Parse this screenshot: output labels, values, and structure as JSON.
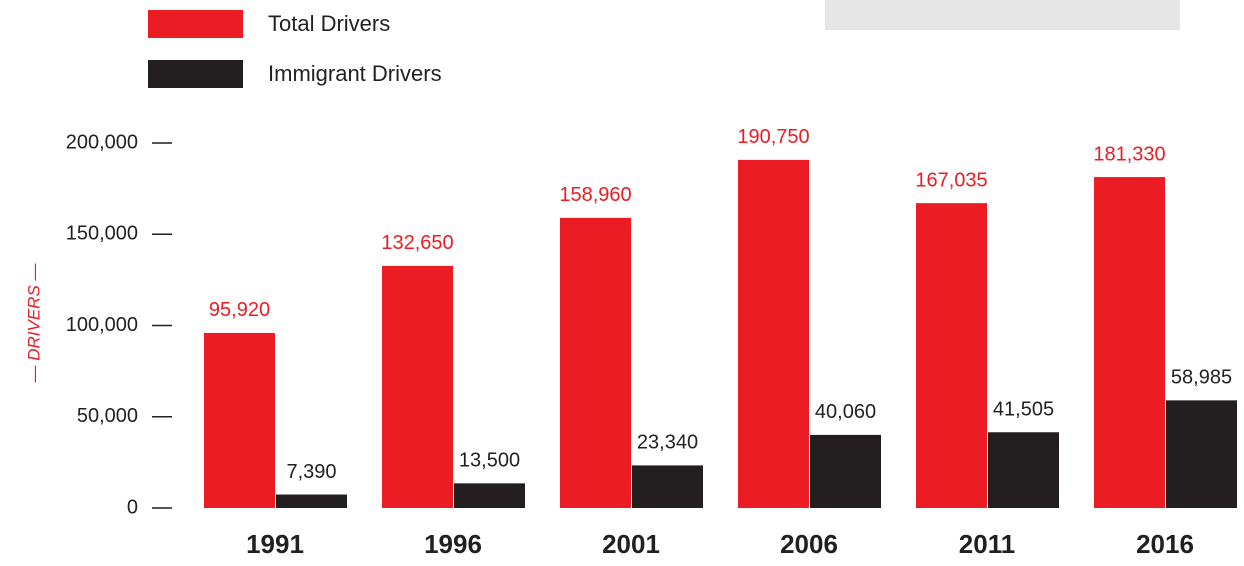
{
  "chart_data": {
    "type": "bar",
    "y_label": "— DRIVERS —",
    "categories": [
      "1991",
      "1996",
      "2001",
      "2006",
      "2011",
      "2016"
    ],
    "series": [
      {
        "name": "Total Drivers",
        "color": "#ec1c24",
        "values": [
          95920,
          132650,
          158960,
          190750,
          167035,
          181330
        ],
        "value_labels": [
          "95,920",
          "132,650",
          "158,960",
          "190,750",
          "167,035",
          "181,330"
        ]
      },
      {
        "name": "Immigrant Drivers",
        "color": "#231f20",
        "values": [
          7390,
          13500,
          23340,
          40060,
          41505,
          58985
        ],
        "value_labels": [
          "7,390",
          "13,500",
          "23,340",
          "40,060",
          "41,505",
          "58,985"
        ]
      }
    ],
    "ylim": [
      0,
      200000
    ],
    "yticks": [
      0,
      {
        "value": 50000,
        "label": "50,000"
      },
      {
        "value": 100000,
        "label": "100,000"
      },
      {
        "value": 150000,
        "label": "150,000"
      },
      {
        "value": 200000,
        "label": "200,000"
      }
    ],
    "grid": false,
    "legend": "top-left"
  }
}
